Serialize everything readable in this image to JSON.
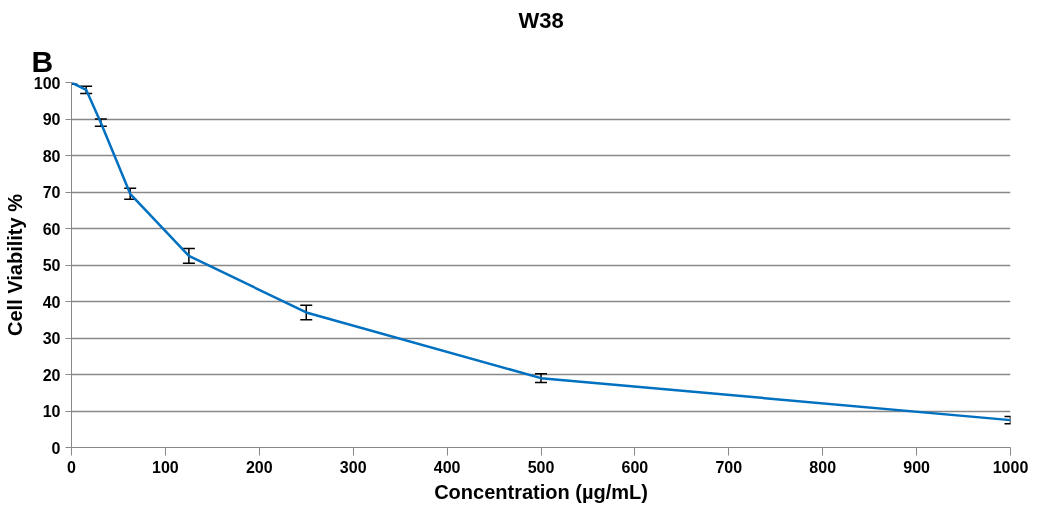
{
  "chart_data": {
    "type": "line",
    "title": "W38",
    "xlabel": "Concentration (µg/mL)",
    "ylabel": "Cell Viability %",
    "annotations": [
      "B"
    ],
    "x": [
      0,
      15.6,
      31.25,
      62.5,
      125,
      250,
      500,
      1000
    ],
    "series": [
      {
        "color": "#0070c0",
        "values": [
          100,
          98,
          89,
          69.5,
          52.5,
          37,
          19,
          7.5
        ],
        "errors": [
          0.5,
          1,
          1,
          1.5,
          2,
          2,
          1.2,
          1
        ]
      }
    ],
    "xlim": [
      0,
      1000
    ],
    "ylim": [
      0,
      100
    ],
    "xticks": [
      0,
      100,
      200,
      300,
      400,
      500,
      600,
      700,
      800,
      900,
      1000
    ],
    "yticks": [
      0,
      10,
      20,
      30,
      40,
      50,
      60,
      70,
      80,
      90,
      100
    ],
    "grid": "y",
    "marker": "none",
    "line_style": "solid"
  }
}
